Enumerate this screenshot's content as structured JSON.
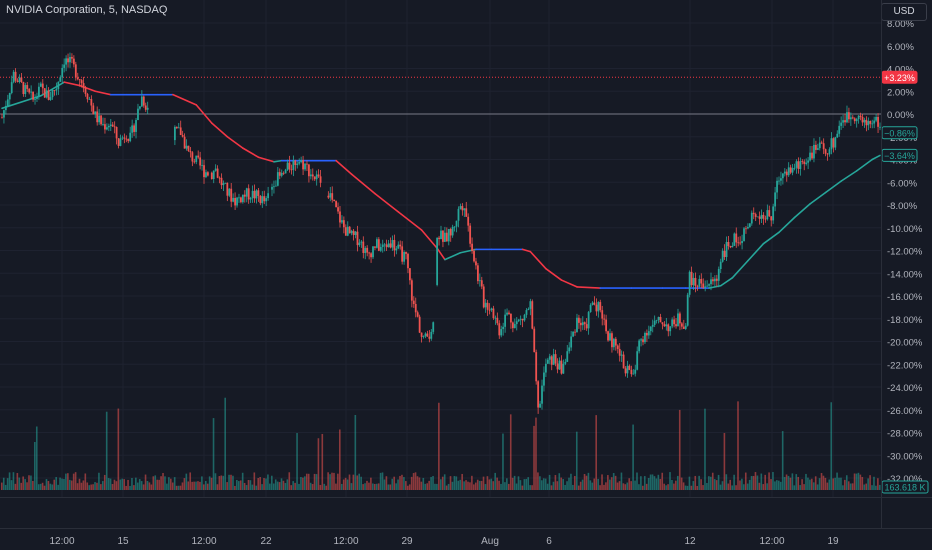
{
  "header": {
    "symbol_title": "NVIDIA Corporation, 5, NASDAQ",
    "currency_button": "USD"
  },
  "colors": {
    "background": "#161a25",
    "grid": "#1e2230",
    "text": "#b2b5be",
    "up": "#26a69a",
    "down": "#ef5350",
    "ma_up": "#26a69a",
    "ma_down": "#f23645",
    "ma_flat": "#2962ff",
    "price_line": "#f23645",
    "zero_line": "#787b86"
  },
  "chart_data": {
    "type": "line",
    "title": "",
    "xlabel": "",
    "ylabel": "",
    "y_unit": "%",
    "ylim": [
      -33,
      9.5
    ],
    "y_ticks": [
      "8.00%",
      "6.00%",
      "4.00%",
      "2.00%",
      "0.00%",
      "-2.00%",
      "-4.00%",
      "-6.00%",
      "-8.00%",
      "-10.00%",
      "-12.00%",
      "-14.00%",
      "-16.00%",
      "-18.00%",
      "-20.00%",
      "-22.00%",
      "-24.00%",
      "-26.00%",
      "-28.00%",
      "-30.00%",
      "-32.00%"
    ],
    "x_ticks": [
      "12:00",
      "15",
      "12:00",
      "22",
      "12:00",
      "29",
      "Aug",
      "6",
      "12",
      "12:00",
      "19"
    ],
    "grid": true,
    "series": [
      {
        "style": "candles",
        "points": [
          [
            0,
            -0.3
          ],
          [
            3,
            3.5
          ],
          [
            6,
            2.0
          ],
          [
            8,
            1.2
          ],
          [
            10,
            2.2
          ],
          [
            12,
            1.5
          ],
          [
            14,
            2.4
          ],
          [
            16,
            4.8
          ],
          [
            18,
            4.3
          ],
          [
            20,
            3.2
          ],
          [
            22,
            1.8
          ],
          [
            24,
            -0.2
          ],
          [
            26,
            -1.0
          ],
          [
            28,
            -0.8
          ],
          [
            30,
            -2.5
          ],
          [
            32,
            -1.6
          ],
          [
            33,
            -2.2
          ],
          [
            34,
            -1.0
          ],
          [
            36,
            1.5
          ],
          [
            38,
            0.2
          ],
          [
            40,
            -0.8
          ],
          [
            42,
            -1.2
          ],
          [
            44,
            -1.7
          ],
          [
            46,
            -1.6
          ],
          [
            48,
            -3.5
          ],
          [
            50,
            -4.2
          ],
          [
            52,
            -5.0
          ],
          [
            54,
            -5.2
          ],
          [
            55,
            -4.8
          ],
          [
            56,
            -5.8
          ],
          [
            58,
            -6.9
          ],
          [
            60,
            -7.6
          ],
          [
            62,
            -7.2
          ],
          [
            64,
            -7.0
          ],
          [
            66,
            -7.3
          ],
          [
            68,
            -7.8
          ],
          [
            70,
            -5.8
          ],
          [
            72,
            -5.5
          ],
          [
            74,
            -4.6
          ],
          [
            76,
            -4.0
          ],
          [
            78,
            -4.5
          ],
          [
            80,
            -5.4
          ],
          [
            82,
            -6.0
          ],
          [
            84,
            -6.8
          ],
          [
            86,
            -8.5
          ],
          [
            88,
            -10.0
          ],
          [
            90,
            -10.8
          ],
          [
            92,
            -11.0
          ],
          [
            94,
            -12.5
          ],
          [
            96,
            -11.5
          ],
          [
            98,
            -11.8
          ],
          [
            100,
            -11.2
          ],
          [
            102,
            -12.0
          ],
          [
            104,
            -12.8
          ],
          [
            106,
            -17.0
          ],
          [
            107,
            -18.0
          ],
          [
            108,
            -19.5
          ],
          [
            109,
            -19.8
          ],
          [
            110,
            -19.2
          ],
          [
            111,
            -18.5
          ],
          [
            112,
            -10.5
          ],
          [
            114,
            -11.0
          ],
          [
            116,
            -10.2
          ],
          [
            118,
            -8.0
          ],
          [
            119,
            -7.8
          ],
          [
            120,
            -10.0
          ],
          [
            122,
            -13.5
          ],
          [
            124,
            -16.5
          ],
          [
            126,
            -17.0
          ],
          [
            128,
            -19.0
          ],
          [
            130,
            -17.5
          ],
          [
            132,
            -18.5
          ],
          [
            134,
            -18.0
          ],
          [
            136,
            -16.8
          ],
          [
            138,
            -26.2
          ],
          [
            139,
            -24.0
          ],
          [
            140,
            -22.0
          ],
          [
            142,
            -21.5
          ],
          [
            144,
            -22.5
          ],
          [
            146,
            -20.5
          ],
          [
            148,
            -18.0
          ],
          [
            150,
            -19.0
          ],
          [
            152,
            -16.5
          ],
          [
            154,
            -17.0
          ],
          [
            156,
            -19.5
          ],
          [
            158,
            -20.5
          ],
          [
            160,
            -22.0
          ],
          [
            162,
            -23.0
          ],
          [
            163,
            -22.5
          ],
          [
            164,
            -20.0
          ],
          [
            166,
            -19.0
          ],
          [
            168,
            -18.5
          ],
          [
            170,
            -18.2
          ],
          [
            172,
            -18.8
          ],
          [
            174,
            -18.0
          ],
          [
            176,
            -18.5
          ],
          [
            177,
            -14.0
          ],
          [
            178,
            -15.0
          ],
          [
            180,
            -14.8
          ],
          [
            182,
            -15.0
          ],
          [
            184,
            -14.5
          ],
          [
            185,
            -12.5
          ],
          [
            186,
            -12.0
          ],
          [
            188,
            -11.2
          ],
          [
            190,
            -10.8
          ],
          [
            192,
            -10.0
          ],
          [
            194,
            -8.5
          ],
          [
            196,
            -9.0
          ],
          [
            198,
            -9.0
          ],
          [
            200,
            -5.5
          ],
          [
            202,
            -5.0
          ],
          [
            204,
            -4.8
          ],
          [
            206,
            -4.2
          ],
          [
            208,
            -3.5
          ],
          [
            210,
            -3.0
          ],
          [
            212,
            -3.2
          ],
          [
            214,
            -2.5
          ],
          [
            216,
            -0.5
          ],
          [
            218,
            -0.2
          ],
          [
            220,
            0.0
          ],
          [
            222,
            -1.0
          ],
          [
            224,
            -0.5
          ],
          [
            226,
            -0.9
          ]
        ]
      },
      {
        "style": "moving-average",
        "points": [
          [
            0,
            0.5
          ],
          [
            10,
            1.6
          ],
          [
            16,
            2.8
          ],
          [
            20,
            2.5
          ],
          [
            24,
            2.0
          ],
          [
            28,
            1.7
          ],
          [
            32,
            1.7
          ],
          [
            36,
            1.7
          ],
          [
            40,
            1.7
          ],
          [
            44,
            1.7
          ],
          [
            50,
            0.8
          ],
          [
            54,
            -0.8
          ],
          [
            58,
            -2.0
          ],
          [
            62,
            -3.0
          ],
          [
            66,
            -3.8
          ],
          [
            70,
            -4.2
          ],
          [
            72,
            -4.1
          ],
          [
            80,
            -4.1
          ],
          [
            86,
            -4.1
          ],
          [
            90,
            -5.3
          ],
          [
            96,
            -7.0
          ],
          [
            102,
            -8.6
          ],
          [
            108,
            -10.2
          ],
          [
            112,
            -11.8
          ],
          [
            114,
            -12.8
          ],
          [
            118,
            -12.2
          ],
          [
            122,
            -11.9
          ],
          [
            126,
            -11.9
          ],
          [
            134,
            -11.9
          ],
          [
            136,
            -12.1
          ],
          [
            140,
            -13.6
          ],
          [
            144,
            -14.6
          ],
          [
            148,
            -15.2
          ],
          [
            154,
            -15.3
          ],
          [
            162,
            -15.3
          ],
          [
            170,
            -15.3
          ],
          [
            176,
            -15.3
          ],
          [
            182,
            -15.3
          ],
          [
            185,
            -15.1
          ],
          [
            188,
            -14.4
          ],
          [
            192,
            -12.9
          ],
          [
            196,
            -11.4
          ],
          [
            200,
            -10.4
          ],
          [
            204,
            -9.1
          ],
          [
            208,
            -7.9
          ],
          [
            212,
            -6.9
          ],
          [
            216,
            -5.9
          ],
          [
            220,
            -5.0
          ],
          [
            224,
            -4.0
          ],
          [
            226,
            -3.64
          ]
        ]
      }
    ],
    "volume": {
      "last_label": "163.618 K"
    },
    "price_labels": [
      {
        "value": 3.23,
        "label": "+3.23%"
      },
      {
        "value": -0.86,
        "label": "−0.86%"
      },
      {
        "value": -3.64,
        "label": "−3.64%"
      }
    ]
  }
}
